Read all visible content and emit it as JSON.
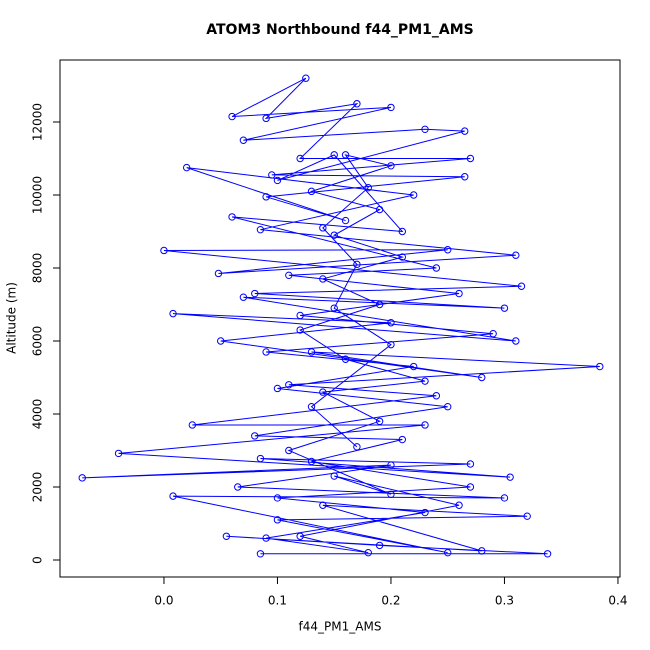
{
  "chart_data": {
    "type": "line",
    "marker": "circle",
    "color": "#0000ff",
    "title": "ATOM3 Northbound f44_PM1_AMS",
    "x_label": "f44_PM1_AMS",
    "y_label": "Altitude (m)",
    "xlim": [
      -0.0916,
      0.4018
    ],
    "ylim": [
      -466,
      13699
    ],
    "xticks": [
      {
        "value": 0,
        "label": "0.0"
      },
      0.1,
      0.2,
      0.3,
      0.4
    ],
    "yticks": [
      0,
      2000,
      4000,
      6000,
      8000,
      10000,
      12000
    ],
    "x": [
      0.085,
      0.338,
      0.19,
      0.055,
      0.28,
      0.14,
      0.32,
      0.1,
      0.25,
      0.008,
      0.3,
      0.065,
      0.2,
      -0.072,
      0.27,
      0.085,
      0.305,
      -0.04,
      0.23,
      0.025,
      0.24,
      0.11,
      0.384,
      0.13,
      0.28,
      0.05,
      0.2,
      0.008,
      0.31,
      0.07,
      0.3,
      0.08,
      0.315,
      0.0,
      0.25,
      0.048,
      0.31,
      0.085,
      0.22,
      0.02,
      0.16,
      0.09,
      0.265,
      0.095,
      0.27,
      0.12,
      0.17,
      0.09,
      0.125,
      0.06,
      0.2,
      0.07,
      0.23,
      0.265,
      0.1,
      0.15,
      0.21,
      0.06,
      0.24,
      0.11,
      0.26,
      0.12,
      0.29,
      0.09,
      0.22,
      0.1,
      0.25,
      0.08,
      0.21,
      0.13,
      0.27,
      0.1,
      0.23,
      0.09,
      0.18,
      0.12,
      0.26,
      0.15,
      0.2,
      0.11,
      0.19,
      0.14,
      0.23,
      0.16,
      0.12,
      0.19,
      0.14,
      0.21,
      0.15,
      0.19,
      0.13,
      0.2,
      0.16,
      0.18,
      0.14,
      0.17,
      0.15,
      0.2,
      0.13,
      0.17
    ],
    "y": [
      170,
      170,
      400,
      650,
      250,
      1500,
      1200,
      1100,
      200,
      1750,
      1700,
      2000,
      2600,
      2250,
      2630,
      2780,
      2270,
      2920,
      3700,
      3700,
      4500,
      4800,
      5300,
      5700,
      5000,
      6000,
      6500,
      6750,
      6000,
      7200,
      6900,
      7300,
      7500,
      8480,
      8500,
      7850,
      8350,
      9050,
      10000,
      10750,
      9300,
      9950,
      10500,
      10550,
      11000,
      11000,
      12500,
      12100,
      13200,
      12150,
      12400,
      11500,
      11800,
      11750,
      10400,
      11100,
      9000,
      9400,
      8000,
      7800,
      7300,
      6700,
      6200,
      5700,
      5300,
      4700,
      4200,
      3400,
      3300,
      2700,
      2000,
      1700,
      1300,
      600,
      200,
      650,
      1500,
      2300,
      1800,
      3000,
      3800,
      4600,
      4900,
      5500,
      6300,
      7000,
      7700,
      8300,
      8900,
      9600,
      10100,
      10800,
      11100,
      10200,
      9100,
      8100,
      6900,
      5900,
      4200,
      3100
    ]
  }
}
